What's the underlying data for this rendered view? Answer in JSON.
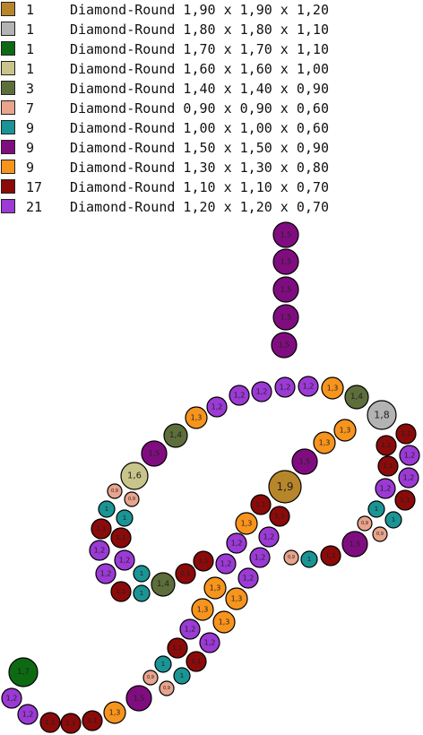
{
  "legend": [
    {
      "qty": "1",
      "text": "Diamond-Round 1,90 x 1,90 x 1,20",
      "color": "#b8862a"
    },
    {
      "qty": "1",
      "text": "Diamond-Round 1,80 x 1,80 x 1,10",
      "color": "#b3b3b3"
    },
    {
      "qty": "1",
      "text": "Diamond-Round 1,70 x 1,70 x 1,10",
      "color": "#0e6a12"
    },
    {
      "qty": "1",
      "text": "Diamond-Round 1,60 x 1,60 x 1,00",
      "color": "#c9c489"
    },
    {
      "qty": "3",
      "text": "Diamond-Round 1,40 x 1,40 x 0,90",
      "color": "#5e6e3b"
    },
    {
      "qty": "7",
      "text": "Diamond-Round 0,90 x 0,90 x 0,60",
      "color": "#e8a48c"
    },
    {
      "qty": "9",
      "text": "Diamond-Round 1,00 x 1,00 x 0,60",
      "color": "#1a9494"
    },
    {
      "qty": "9",
      "text": "Diamond-Round 1,50 x 1,50 x 0,90",
      "color": "#800d80"
    },
    {
      "qty": "9",
      "text": "Diamond-Round 1,30 x 1,30 x 0,80",
      "color": "#f7941d"
    },
    {
      "qty": "17",
      "text": "Diamond-Round 1,10 x 1,10 x 0,70",
      "color": "#8b0a0a"
    },
    {
      "qty": "21",
      "text": "Diamond-Round 1,20 x 1,20 x 0,70",
      "color": "#9b3ad4"
    }
  ],
  "stone_types": {
    "1,9": {
      "color": "#b8862a",
      "label": "1,9"
    },
    "1,8": {
      "color": "#b3b3b3",
      "label": "1,8"
    },
    "1,7": {
      "color": "#0e6a12",
      "label": "1,7"
    },
    "1,6": {
      "color": "#c9c489",
      "label": "1,6"
    },
    "1,5": {
      "color": "#800d80",
      "label": "1,5"
    },
    "1,4": {
      "color": "#5e6e3b",
      "label": "1,4"
    },
    "1,3": {
      "color": "#f7941d",
      "label": "1,3"
    },
    "1,2": {
      "color": "#9b3ad4",
      "label": "1,2"
    },
    "1,1": {
      "color": "#8b0a0a",
      "label": "1,1"
    },
    "1": {
      "color": "#1a9494",
      "label": "1"
    },
    "0,9": {
      "color": "#e8a48c",
      "label": "0,9"
    }
  }
}
